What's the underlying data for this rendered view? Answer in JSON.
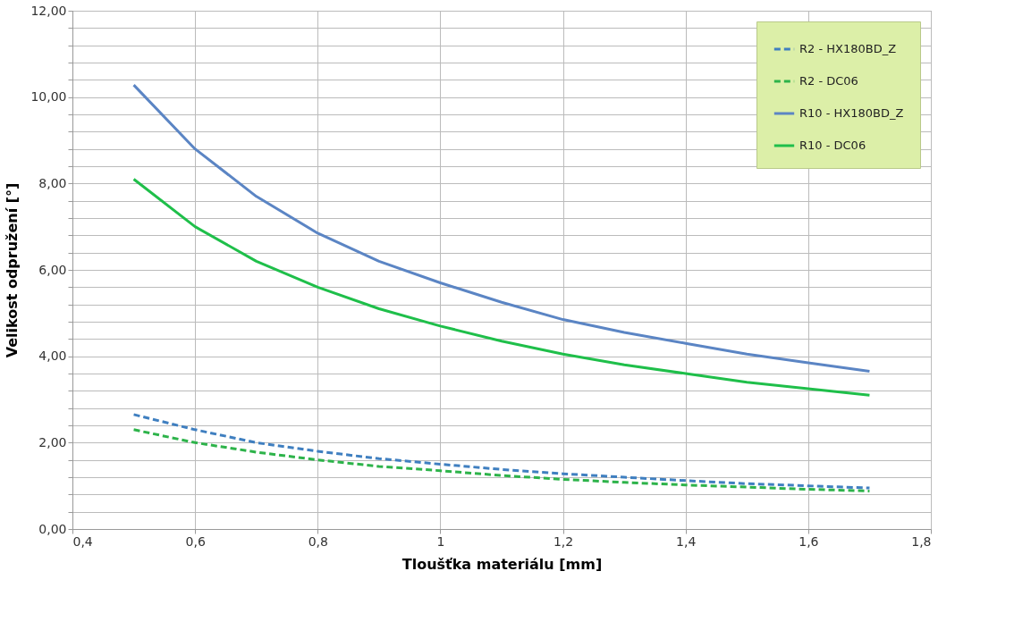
{
  "chart_data": {
    "type": "line",
    "xlabel": "Tloušťka materiálu [mm]",
    "ylabel": "Velikost odpružení [°]",
    "x": [
      0.5,
      0.6,
      0.7,
      0.8,
      0.9,
      1.0,
      1.1,
      1.2,
      1.3,
      1.4,
      1.5,
      1.6,
      1.7
    ],
    "series": [
      {
        "name": "R2 - HX180BD_Z",
        "color": "#3f7fc0",
        "line_style": "dashed",
        "values": [
          2.65,
          2.3,
          2.0,
          1.8,
          1.63,
          1.5,
          1.38,
          1.28,
          1.2,
          1.12,
          1.05,
          1.0,
          0.95
        ]
      },
      {
        "name": "R2 - DC06",
        "color": "#2db34a",
        "line_style": "dashed",
        "values": [
          2.3,
          2.0,
          1.78,
          1.6,
          1.45,
          1.35,
          1.24,
          1.15,
          1.08,
          1.02,
          0.97,
          0.92,
          0.88
        ]
      },
      {
        "name": "R10 - HX180BD_Z",
        "color": "#5b85c4",
        "line_style": "solid",
        "values": [
          10.28,
          8.8,
          7.7,
          6.85,
          6.2,
          5.7,
          5.25,
          4.85,
          4.55,
          4.3,
          4.05,
          3.85,
          3.65
        ]
      },
      {
        "name": "R10 - DC06",
        "color": "#1fbf4a",
        "line_style": "solid",
        "values": [
          8.1,
          7.0,
          6.2,
          5.6,
          5.1,
          4.7,
          4.35,
          4.05,
          3.8,
          3.6,
          3.4,
          3.25,
          3.1
        ]
      }
    ],
    "xlim": [
      0.4,
      1.8
    ],
    "xticks": [
      {
        "value": 0.4,
        "label": "0,4"
      },
      {
        "value": 0.6,
        "label": "0,6"
      },
      {
        "value": 0.8,
        "label": "0,8"
      },
      1,
      {
        "value": 1.2,
        "label": "1,2"
      },
      {
        "value": 1.4,
        "label": "1,4"
      },
      {
        "value": 1.6,
        "label": "1,6"
      },
      {
        "value": 1.8,
        "label": "1,8"
      }
    ],
    "ylim": [
      0,
      12
    ],
    "yticks": [
      {
        "value": 0,
        "label": "0,00"
      },
      {
        "value": 0.4,
        "label": null
      },
      {
        "value": 0.8,
        "label": null
      },
      {
        "value": 1.2,
        "label": null
      },
      {
        "value": 1.6,
        "label": null
      },
      {
        "value": 2,
        "label": "2,00"
      },
      {
        "value": 2.4,
        "label": null
      },
      {
        "value": 2.8,
        "label": null
      },
      {
        "value": 3.2,
        "label": null
      },
      {
        "value": 3.6,
        "label": null
      },
      {
        "value": 4,
        "label": "4,00"
      },
      {
        "value": 4.4,
        "label": null
      },
      {
        "value": 4.8,
        "label": null
      },
      {
        "value": 5.2,
        "label": null
      },
      {
        "value": 5.6,
        "label": null
      },
      {
        "value": 6,
        "label": "6,00"
      },
      {
        "value": 6.4,
        "label": null
      },
      {
        "value": 6.8,
        "label": null
      },
      {
        "value": 7.2,
        "label": null
      },
      {
        "value": 7.6,
        "label": null
      },
      {
        "value": 8,
        "label": "8,00"
      },
      {
        "value": 8.4,
        "label": null
      },
      {
        "value": 8.8,
        "label": null
      },
      {
        "value": 9.2,
        "label": null
      },
      {
        "value": 9.6,
        "label": null
      },
      {
        "value": 10,
        "label": "10,00"
      },
      {
        "value": 10.4,
        "label": null
      },
      {
        "value": 10.8,
        "label": null
      },
      {
        "value": 11.2,
        "label": null
      },
      {
        "value": 11.6,
        "label": null
      },
      {
        "value": 12,
        "label": "12,00"
      }
    ],
    "grid": true,
    "legend": "top right",
    "marker": "none"
  }
}
